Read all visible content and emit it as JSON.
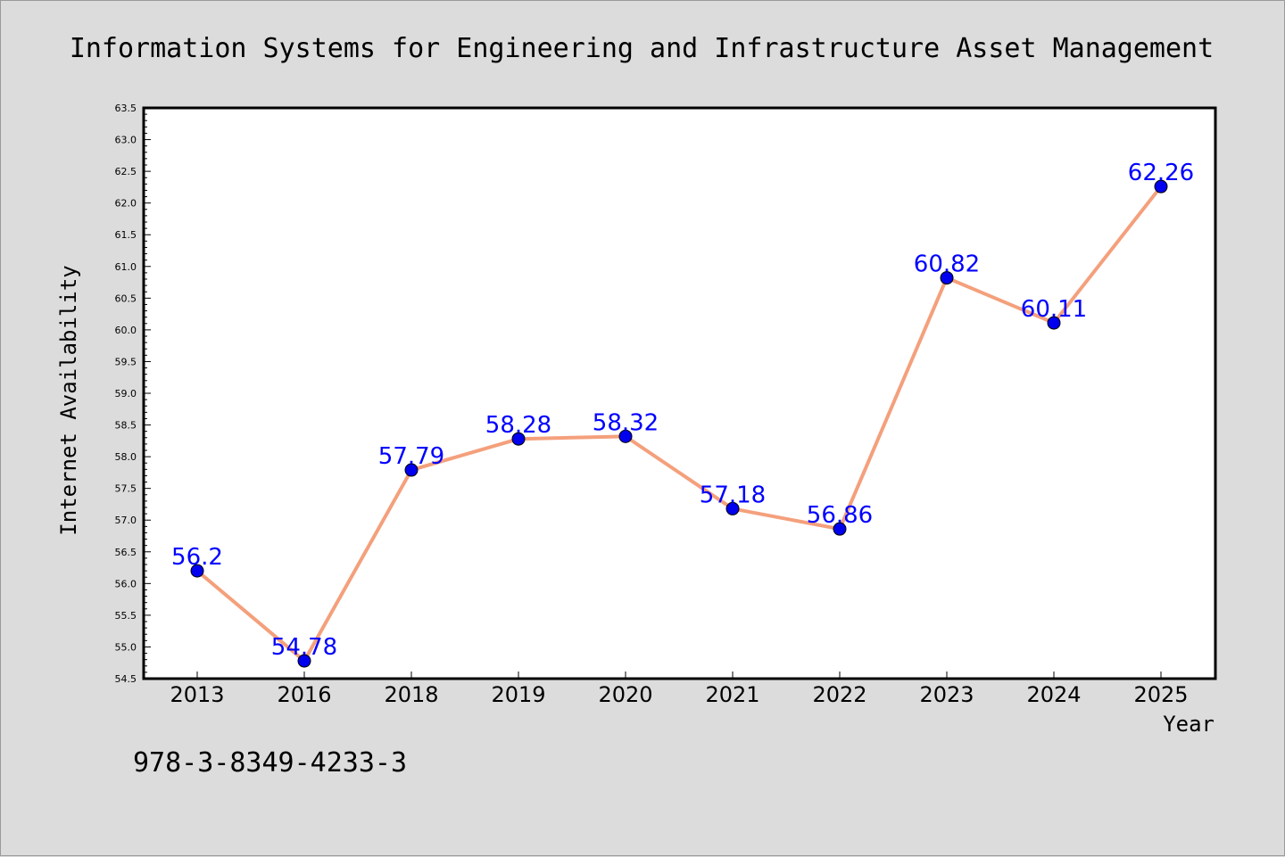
{
  "figure": {
    "title": "Information Systems for Engineering and Infrastructure Asset Management",
    "note": "978-3-8349-4233-3",
    "background": "#dcdcdc"
  },
  "chart_data": {
    "type": "line",
    "title": "Information Systems for Engineering and Infrastructure Asset Management",
    "xlabel": "Year",
    "ylabel": "Internet Availability",
    "categories": [
      "2013",
      "2016",
      "2018",
      "2019",
      "2020",
      "2021",
      "2022",
      "2023",
      "2024",
      "2025"
    ],
    "series": [
      {
        "values": [
          56.2,
          54.78,
          57.79,
          58.28,
          58.32,
          57.18,
          56.86,
          60.82,
          60.11,
          62.26
        ],
        "labels": [
          "56.2",
          "54.78",
          "57.79",
          "58.28",
          "58.32",
          "57.18",
          "56.86",
          "60.82",
          "60.11",
          "62.26"
        ],
        "line_color": "#f4a07c",
        "marker_color": "#0000ee",
        "label_color": "#0000ff"
      }
    ],
    "ylim": [
      54.5,
      63.5
    ],
    "yticks": [
      "54.5",
      "55.0",
      "55.5",
      "56.0",
      "56.5",
      "57.0",
      "57.5",
      "58.0",
      "58.5",
      "59.0",
      "59.5",
      "60.0",
      "60.5",
      "61.0",
      "61.5",
      "62.0",
      "62.5",
      "63.0",
      "63.5"
    ],
    "grid": false,
    "legend": "none",
    "plot_background": "#ffffff"
  }
}
